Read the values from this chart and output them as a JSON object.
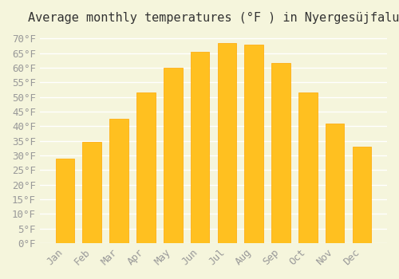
{
  "title": "Average monthly temperatures (°F ) in Nyergesüjfalu",
  "months": [
    "Jan",
    "Feb",
    "Mar",
    "Apr",
    "May",
    "Jun",
    "Jul",
    "Aug",
    "Sep",
    "Oct",
    "Nov",
    "Dec"
  ],
  "values": [
    29,
    34.5,
    42.5,
    51.5,
    60,
    65.5,
    68.5,
    68,
    61.5,
    51.5,
    41,
    33
  ],
  "bar_color": "#FFC020",
  "bar_edge_color": "#FFA500",
  "background_color": "#F5F5DC",
  "grid_color": "#FFFFFF",
  "ylim": [
    0,
    72
  ],
  "yticks": [
    0,
    5,
    10,
    15,
    20,
    25,
    30,
    35,
    40,
    45,
    50,
    55,
    60,
    65,
    70
  ],
  "title_fontsize": 11,
  "tick_fontsize": 9,
  "tick_font_color": "#999999"
}
